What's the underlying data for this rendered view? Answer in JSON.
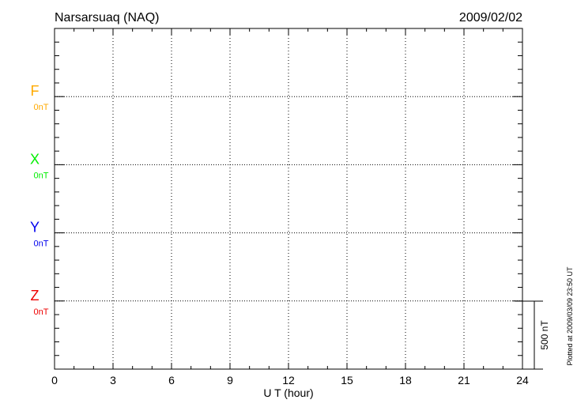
{
  "header": {
    "station": "Narsarsuaq (NAQ)",
    "date": "2009/02/02"
  },
  "footer": {
    "plotted_at": "Plotted at 2009/03/09 23:50 UT"
  },
  "chart_data": {
    "type": "line",
    "title": "Narsarsuaq (NAQ)",
    "xlabel": "U T (hour)",
    "xlim": [
      0,
      24
    ],
    "xticks": [
      "0",
      "3",
      "6",
      "9",
      "12",
      "15",
      "18",
      "21",
      "24"
    ],
    "grid": true,
    "scale_bar": "500 nT",
    "series": [
      {
        "name": "F",
        "baseline_label": "0nT",
        "color": "#ffaa00",
        "values": []
      },
      {
        "name": "X",
        "baseline_label": "0nT",
        "color": "#00ee00",
        "values": []
      },
      {
        "name": "Y",
        "baseline_label": "0nT",
        "color": "#0000ee",
        "values": []
      },
      {
        "name": "Z",
        "baseline_label": "0nT",
        "color": "#ee0000",
        "values": []
      }
    ]
  }
}
